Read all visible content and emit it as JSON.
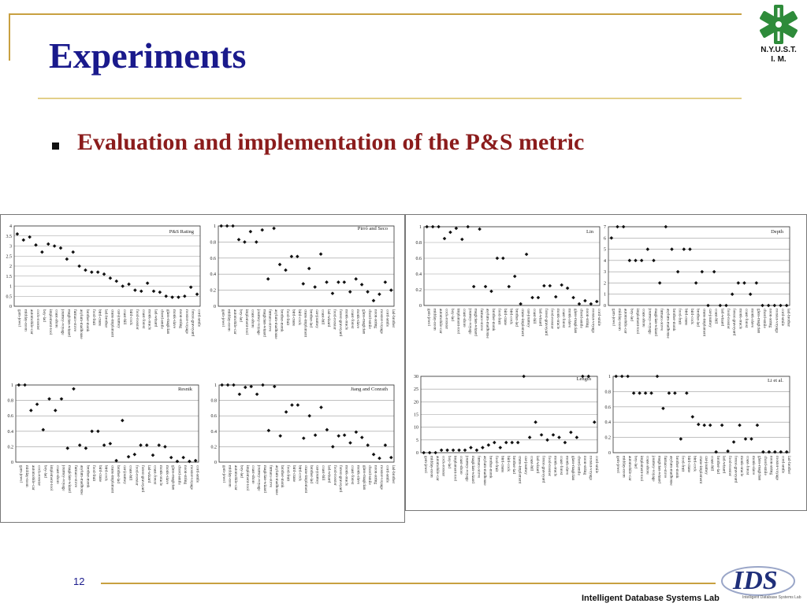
{
  "slide": {
    "title": "Experiments",
    "bullet": "Evaluation and implementation of the P&S metric",
    "logo_text_line1": "N.Y.U.S.T.",
    "logo_text_line2": "I. M.",
    "page_number": "12",
    "footer": "Intelligent Database Systems Lab",
    "lab_logo_text": "IDS",
    "lab_logo_sub": "Intelligent Database Systems Lab",
    "colors": {
      "title": "#1a1a8c",
      "bullet": "#8b1c1c",
      "rules": "#c8a040",
      "marker": "#111111"
    }
  },
  "chart_data": [
    {
      "type": "scatter",
      "title": "P&S Rating",
      "ylim": [
        0,
        4
      ],
      "yticks": [
        "0",
        "0.5",
        "1",
        "1.5",
        "2",
        "2.5",
        "3",
        "3.5",
        "4"
      ],
      "grid": true,
      "categories": [
        "gem-jewel",
        "midday-noon",
        "automobile-car",
        "cock-rooster",
        "boy-lad",
        "implement-tool",
        "coast-shore",
        "journey-voyage",
        "magician-wizard",
        "furnace-stove",
        "asylum-madhouse",
        "brother-monk",
        "food-fruit",
        "bird-crane",
        "lad-brother",
        "crane-implement",
        "car-journey",
        "coast-hill",
        "bird-cock",
        "food-rooster",
        "coast-forest",
        "monk-oracle",
        "lad-wizard",
        "chord-smile",
        "glass-magician",
        "monk-slave",
        "noon-string",
        "rooster-voyage",
        "forest-graveyard",
        "cord-smile"
      ],
      "values": [
        3.6,
        3.3,
        3.45,
        3.05,
        2.7,
        3.1,
        3.0,
        2.9,
        2.35,
        2.7,
        2.0,
        1.8,
        1.7,
        1.7,
        1.6,
        1.4,
        1.25,
        1.0,
        1.1,
        0.8,
        0.75,
        1.15,
        0.75,
        0.7,
        0.5,
        0.45,
        0.45,
        0.5,
        0.95,
        0.6
      ]
    },
    {
      "type": "scatter",
      "title": "Pirró and Seco",
      "ylim": [
        0,
        1
      ],
      "yticks": [
        "0",
        "0.2",
        "0.4",
        "0.6",
        "0.8",
        "1"
      ],
      "grid": true,
      "categories": [
        "gem-jewel",
        "midday-noon",
        "automobile-car",
        "boy-lad",
        "implement-tool",
        "coast-shore",
        "journey-voyage",
        "magician-wizard",
        "furnace-stove",
        "asylum-madhouse",
        "brother-monk",
        "food-fruit",
        "bird-crane",
        "bird-cock",
        "crane-implement",
        "brother-lad",
        "car-journey",
        "coast-hill",
        "lad-wizard",
        "food-rooster",
        "forest-graveyard",
        "monk-oracle",
        "coast-forest",
        "monk-slave",
        "glass-magician",
        "chord-smile",
        "noon-string",
        "rooster-voyage",
        "cord-smile",
        "lad-brother"
      ],
      "values": [
        1.0,
        1.0,
        1.0,
        0.83,
        0.8,
        0.93,
        0.8,
        0.95,
        0.34,
        0.97,
        0.52,
        0.45,
        0.62,
        0.62,
        0.28,
        0.47,
        0.24,
        0.65,
        0.3,
        0.16,
        0.3,
        0.3,
        0.18,
        0.34,
        0.27,
        0.18,
        0.07,
        0.15,
        0.3,
        0.2
      ]
    },
    {
      "type": "scatter",
      "title": "Lin",
      "ylim": [
        0,
        1
      ],
      "yticks": [
        "0",
        "0.2",
        "0.4",
        "0.6",
        "0.8",
        "1"
      ],
      "grid": true,
      "categories": [
        "gem-jewel",
        "midday-noon",
        "automobile-car",
        "cock-rooster",
        "boy-lad",
        "implement-tool",
        "coast-shore",
        "journey-voyage",
        "magician-wizard",
        "furnace-stove",
        "asylum-madhouse",
        "brother-monk",
        "food-fruit",
        "bird-crane",
        "bird-cock",
        "brother-lad",
        "crane-implement",
        "car-journey",
        "coast-hill",
        "lad-wizard",
        "forest-graveyard",
        "food-rooster",
        "monk-oracle",
        "coast-forest",
        "monk-slave",
        "glass-magician",
        "chord-smile",
        "noon-string",
        "rooster-voyage",
        "cord-smile"
      ],
      "values": [
        1.0,
        1.0,
        1.0,
        0.85,
        0.93,
        0.98,
        0.84,
        1.0,
        0.24,
        0.97,
        0.24,
        0.18,
        0.6,
        0.6,
        0.24,
        0.37,
        0.02,
        0.65,
        0.1,
        0.1,
        0.25,
        0.25,
        0.11,
        0.26,
        0.22,
        0.1,
        0.02,
        0.06,
        0.02,
        0.05
      ]
    },
    {
      "type": "scatter",
      "title": "Depth",
      "ylim": [
        0,
        7
      ],
      "yticks": [
        "0",
        "1",
        "2",
        "3",
        "4",
        "5",
        "6",
        "7"
      ],
      "grid": true,
      "categories": [
        "gem-jewel",
        "midday-noon",
        "automobile-car",
        "boy-lad",
        "implement-tool",
        "coast-shore",
        "journey-voyage",
        "magician-wizard",
        "furnace-stove",
        "asylum-madhouse",
        "brother-monk",
        "food-fruit",
        "bird-crane",
        "bird-cock",
        "brother-lad",
        "crane-implement",
        "car-journey",
        "coast-hill",
        "lad-wizard",
        "food-rooster",
        "forest-graveyard",
        "monk-oracle",
        "coast-forest",
        "monk-slave",
        "glass-magician",
        "chord-smile",
        "noon-string",
        "rooster-voyage",
        "cord-smile",
        "lad-brother"
      ],
      "values": [
        6.0,
        7.0,
        7.0,
        4.0,
        4.0,
        4.0,
        5.0,
        4.0,
        2.0,
        7.0,
        5.0,
        3.0,
        5.0,
        5.0,
        2.0,
        3.0,
        0.0,
        3.0,
        0.0,
        0.0,
        1.0,
        2.0,
        2.0,
        1.0,
        2.0,
        0.0,
        0.0,
        0.0,
        0.0,
        0.0
      ]
    },
    {
      "type": "scatter",
      "title": "Resnik",
      "ylim": [
        0,
        1
      ],
      "yticks": [
        "0",
        "0.2",
        "0.4",
        "0.6",
        "0.8",
        "1"
      ],
      "grid": true,
      "categories": [
        "gem-jewel",
        "midday-noon",
        "automobile-car",
        "cock-rooster",
        "boy-lad",
        "implement-tool",
        "coast-shore",
        "journey-voyage",
        "magician-wizard",
        "furnace-stove",
        "asylum-madhouse",
        "brother-monk",
        "food-fruit",
        "bird-crane",
        "bird-cock",
        "crane-implement",
        "brother-lad",
        "car-journey",
        "coast-hill",
        "food-rooster",
        "forest-graveyard",
        "lad-wizard",
        "coast-forest",
        "monk-oracle",
        "monk-slave",
        "glass-magician",
        "chord-smile",
        "noon-string",
        "rooster-voyage",
        "cord-smile"
      ],
      "values": [
        1.0,
        1.0,
        0.67,
        0.75,
        0.42,
        0.82,
        0.67,
        0.82,
        0.18,
        0.95,
        0.22,
        0.18,
        0.4,
        0.4,
        0.22,
        0.24,
        0.02,
        0.54,
        0.07,
        0.1,
        0.22,
        0.22,
        0.09,
        0.22,
        0.2,
        0.06,
        0.01,
        0.06,
        0.01,
        0.02
      ]
    },
    {
      "type": "scatter",
      "title": "Jiang and Conrath",
      "ylim": [
        0,
        1
      ],
      "yticks": [
        "0",
        "0.2",
        "0.4",
        "0.6",
        "0.8",
        "1"
      ],
      "grid": true,
      "categories": [
        "gem-jewel",
        "midday-noon",
        "automobile-car",
        "boy-lad",
        "implement-tool",
        "coast-shore",
        "journey-voyage",
        "magician-wizard",
        "furnace-stove",
        "asylum-madhouse",
        "brother-monk",
        "food-fruit",
        "bird-crane",
        "bird-cock",
        "crane-implement",
        "brother-lad",
        "car-journey",
        "coast-hill",
        "lad-wizard",
        "food-rooster",
        "forest-graveyard",
        "monk-oracle",
        "coast-forest",
        "monk-slave",
        "glass-magician",
        "chord-smile",
        "noon-string",
        "rooster-voyage",
        "cord-smile",
        "lad-brother"
      ],
      "values": [
        1.0,
        1.0,
        1.0,
        0.88,
        0.97,
        0.98,
        0.88,
        1.0,
        0.41,
        0.98,
        0.34,
        0.65,
        0.74,
        0.74,
        0.31,
        0.6,
        0.35,
        0.71,
        0.42,
        0.2,
        0.34,
        0.35,
        0.25,
        0.39,
        0.32,
        0.22,
        0.1,
        0.05,
        0.22,
        0.06
      ]
    },
    {
      "type": "scatter",
      "title": "Length",
      "ylim": [
        0,
        30
      ],
      "yticks": [
        "0",
        "5",
        "10",
        "15",
        "20",
        "25",
        "30"
      ],
      "grid": true,
      "categories": [
        "gem-jewel",
        "midday-noon",
        "automobile-car",
        "cock-rooster",
        "boy-lad",
        "implement-tool",
        "coast-shore",
        "journey-voyage",
        "magician-wizard",
        "furnace-stove",
        "asylum-madhouse",
        "brother-monk",
        "food-fruit",
        "bird-crane",
        "bird-cock",
        "brother-lad",
        "crane-implement",
        "car-journey",
        "coast-hill",
        "lad-wizard",
        "forest-graveyard",
        "food-rooster",
        "monk-oracle",
        "coast-forest",
        "monk-slave",
        "glass-magician",
        "chord-smile",
        "noon-string",
        "rooster-voyage",
        "cord-smile"
      ],
      "values": [
        0,
        0,
        0,
        1,
        1,
        1,
        1,
        1,
        2,
        1,
        2,
        3,
        4,
        2,
        4,
        4,
        4,
        30,
        6,
        12,
        7,
        5,
        7,
        6,
        4,
        8,
        6,
        30,
        30,
        12
      ]
    },
    {
      "type": "scatter",
      "title": "Li et al.",
      "ylim": [
        0,
        1
      ],
      "yticks": [
        "0",
        "0.2",
        "0.4",
        "0.6",
        "0.8",
        "1"
      ],
      "grid": true,
      "categories": [
        "gem-jewel",
        "midday-noon",
        "automobile-car",
        "boy-lad",
        "implement-tool",
        "coast-shore",
        "journey-voyage",
        "magician-wizard",
        "furnace-stove",
        "asylum-madhouse",
        "brother-monk",
        "food-fruit",
        "bird-crane",
        "bird-cock",
        "crane-implement",
        "car-journey",
        "coast-hill",
        "brother-lad",
        "lad-wizard",
        "food-rooster",
        "forest-graveyard",
        "monk-oracle",
        "coast-forest",
        "monk-slave",
        "glass-magician",
        "chord-smile",
        "noon-string",
        "rooster-voyage",
        "cord-smile",
        "lad-brother"
      ],
      "values": [
        1.0,
        1.0,
        1.0,
        0.78,
        0.78,
        0.78,
        0.78,
        1.0,
        0.58,
        0.78,
        0.78,
        0.18,
        0.78,
        0.47,
        0.37,
        0.36,
        0.36,
        0.01,
        0.36,
        0.02,
        0.14,
        0.36,
        0.18,
        0.18,
        0.36,
        0.01,
        0.01,
        0.01,
        0.01,
        0.01
      ]
    }
  ]
}
